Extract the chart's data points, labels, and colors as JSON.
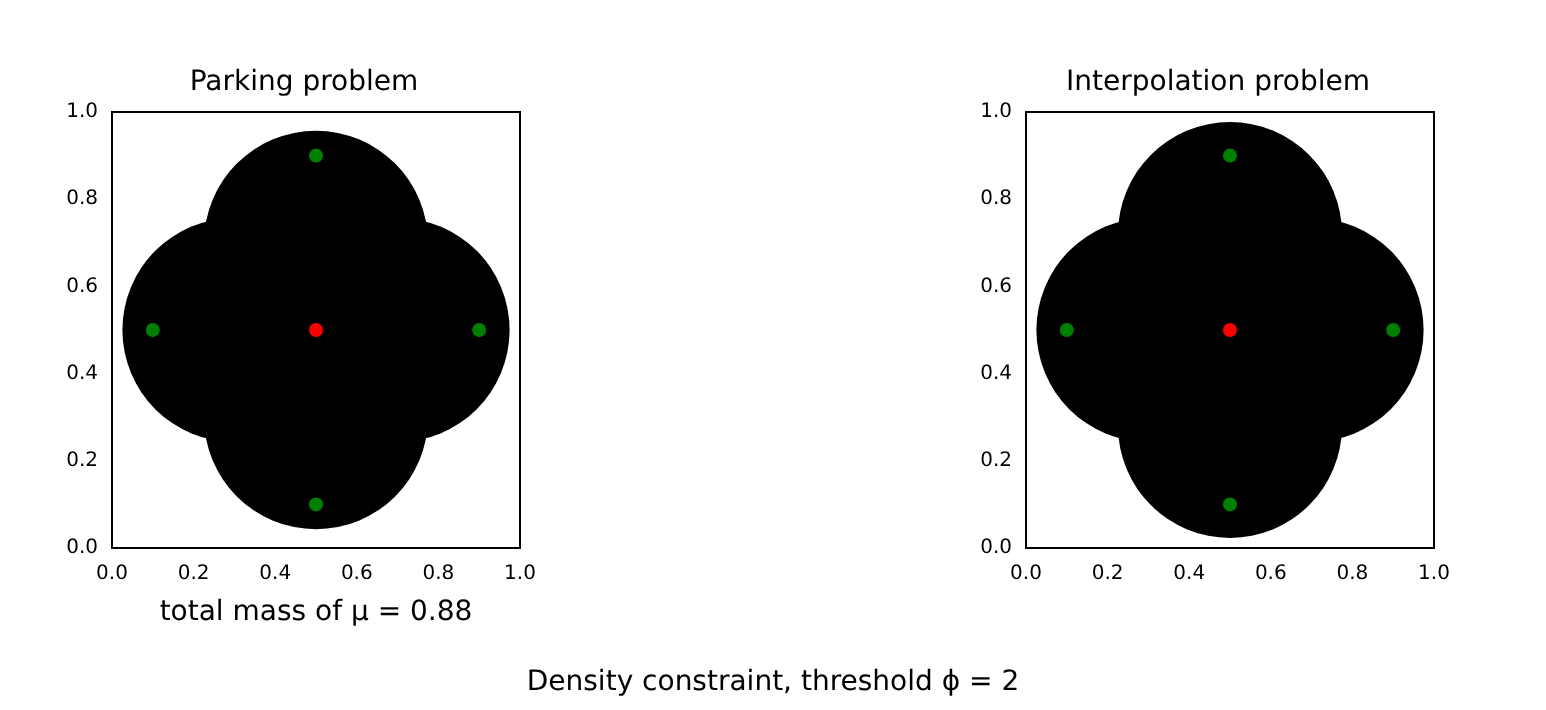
{
  "chart_data": [
    {
      "type": "scatter",
      "title": "Parking problem",
      "xlabel": "total mass of μ = 0.88",
      "xlim": [
        0,
        1
      ],
      "ylim": [
        0,
        1
      ],
      "xticks": [
        {
          "value": 0,
          "label": "0.0"
        },
        {
          "value": 0.2,
          "label": "0.2"
        },
        {
          "value": 0.4,
          "label": "0.4"
        },
        {
          "value": 0.6,
          "label": "0.6"
        },
        {
          "value": 0.8,
          "label": "0.8"
        },
        {
          "value": 1,
          "label": "1.0"
        }
      ],
      "yticks": [
        {
          "value": 0,
          "label": "0.0"
        },
        {
          "value": 0.2,
          "label": "0.2"
        },
        {
          "value": 0.4,
          "label": "0.4"
        },
        {
          "value": 0.6,
          "label": "0.6"
        },
        {
          "value": 0.8,
          "label": "0.8"
        },
        {
          "value": 1,
          "label": "1.0"
        }
      ],
      "grid": false,
      "legend": false,
      "marker": "circle",
      "series": [
        {
          "type": "bubble",
          "color": "#000000",
          "x": [
            0.5,
            0.5,
            0.3,
            0.7
          ],
          "values": [
            0.7,
            0.3,
            0.5,
            0.5
          ],
          "sizes": [
            1,
            1,
            1,
            1
          ]
        },
        {
          "type": "scatter",
          "color": "#008000",
          "x": [
            0.5,
            0.1,
            0.9,
            0.5
          ],
          "values": [
            0.9,
            0.5,
            0.5,
            0.1
          ]
        },
        {
          "type": "scatter",
          "color": "#ff0000",
          "x": [
            0.5
          ],
          "values": [
            0.5
          ]
        }
      ]
    },
    {
      "type": "scatter",
      "title": "Interpolation problem",
      "xlim": [
        0,
        1
      ],
      "ylim": [
        0,
        1
      ],
      "xticks": [
        {
          "value": 0,
          "label": "0.0"
        },
        {
          "value": 0.2,
          "label": "0.2"
        },
        {
          "value": 0.4,
          "label": "0.4"
        },
        {
          "value": 0.6,
          "label": "0.6"
        },
        {
          "value": 0.8,
          "label": "0.8"
        },
        {
          "value": 1,
          "label": "1.0"
        }
      ],
      "yticks": [
        {
          "value": 0,
          "label": "0.0"
        },
        {
          "value": 0.2,
          "label": "0.2"
        },
        {
          "value": 0.4,
          "label": "0.4"
        },
        {
          "value": 0.6,
          "label": "0.6"
        },
        {
          "value": 0.8,
          "label": "0.8"
        },
        {
          "value": 1,
          "label": "1.0"
        }
      ],
      "grid": false,
      "legend": false,
      "marker": "circle",
      "annotations": [
        "Density constraint, threshold ϕ = 2"
      ],
      "series": [
        {
          "type": "bubble",
          "color": "#000000",
          "x": [
            0.5,
            0.5,
            0.3,
            0.7
          ],
          "values": [
            0.72,
            0.28,
            0.5,
            0.5
          ],
          "sizes": [
            1,
            1,
            1,
            1
          ]
        },
        {
          "type": "scatter",
          "color": "#008000",
          "x": [
            0.5,
            0.1,
            0.9,
            0.5
          ],
          "values": [
            0.9,
            0.5,
            0.5,
            0.1
          ]
        },
        {
          "type": "scatter",
          "color": "#ff0000",
          "x": [
            0.5
          ],
          "values": [
            0.5
          ]
        }
      ]
    }
  ]
}
